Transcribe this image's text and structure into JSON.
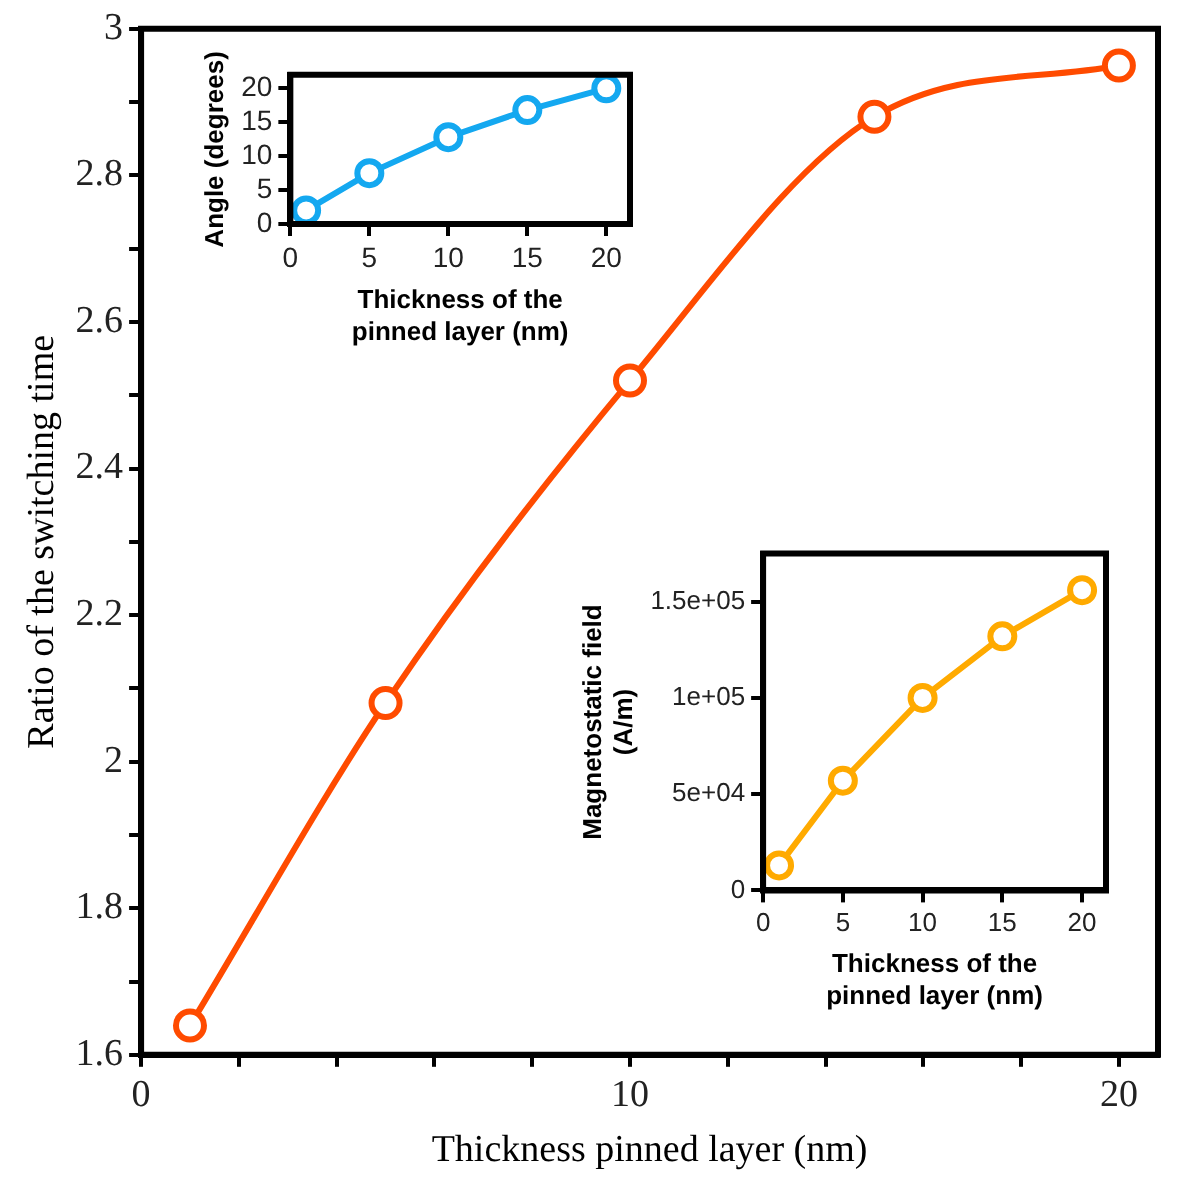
{
  "chart_data": [
    {
      "type": "line",
      "xlabel": "Thickness pinned layer (nm)",
      "ylabel": "Ratio of the switching time",
      "x": [
        1,
        5,
        10,
        15,
        20
      ],
      "series": [
        {
          "color": "#ff4b00",
          "values": [
            1.64,
            2.08,
            2.52,
            2.88,
            2.95
          ]
        }
      ],
      "xlim": [
        0,
        20.8
      ],
      "ylim": [
        1.6,
        3
      ],
      "xticks": [
        0,
        {
          "value": 2,
          "label": null
        },
        {
          "value": 4,
          "label": null
        },
        {
          "value": 6,
          "label": null
        },
        {
          "value": 8,
          "label": null
        },
        10,
        {
          "value": 12,
          "label": null
        },
        {
          "value": 14,
          "label": null
        },
        {
          "value": 16,
          "label": null
        },
        {
          "value": 18,
          "label": null
        },
        20
      ],
      "yticks": [
        1.6,
        {
          "value": 1.7,
          "label": null
        },
        1.8,
        {
          "value": 1.9,
          "label": null
        },
        2,
        {
          "value": 2.1,
          "label": null
        },
        2.2,
        {
          "value": 2.3,
          "label": null
        },
        2.4,
        {
          "value": 2.5,
          "label": null
        },
        2.6,
        {
          "value": 2.7,
          "label": null
        },
        2.8,
        {
          "value": 2.9,
          "label": null
        },
        3
      ],
      "marker": "circle",
      "line_style": "solid",
      "legend": false
    },
    {
      "type": "line",
      "xlabel": "Thickness of the pinned layer (nm)",
      "ylabel": "Angle (degrees)",
      "x": [
        1,
        5,
        10,
        15,
        20
      ],
      "series": [
        {
          "color": "#14a8f0",
          "values": [
            2,
            7.5,
            12.8,
            16.8,
            20
          ]
        }
      ],
      "xlim": [
        0,
        21.5
      ],
      "ylim": [
        0,
        22
      ],
      "xticks": [
        0,
        5,
        10,
        15,
        20
      ],
      "yticks": [
        0,
        5,
        10,
        15,
        20
      ],
      "marker": "circle",
      "line_style": "solid",
      "legend": false
    },
    {
      "type": "line",
      "xlabel": "Thickness of the pinned layer (nm)",
      "ylabel": "Magnetostatic field (A/m)",
      "x": [
        1,
        5,
        10,
        15,
        20
      ],
      "series": [
        {
          "color": "#ffaa00",
          "values": [
            13000,
            57000,
            100000,
            132000,
            156000
          ]
        }
      ],
      "xlim": [
        0,
        21.5
      ],
      "ylim": [
        0,
        175000
      ],
      "xticks": [
        0,
        5,
        10,
        15,
        20
      ],
      "yticks": [
        0,
        {
          "value": 50000,
          "label": "5e+04"
        },
        {
          "value": 100000,
          "label": "1e+05"
        },
        {
          "value": 150000,
          "label": "1.5e+05"
        }
      ],
      "marker": "circle",
      "line_style": "solid",
      "legend": false
    }
  ]
}
